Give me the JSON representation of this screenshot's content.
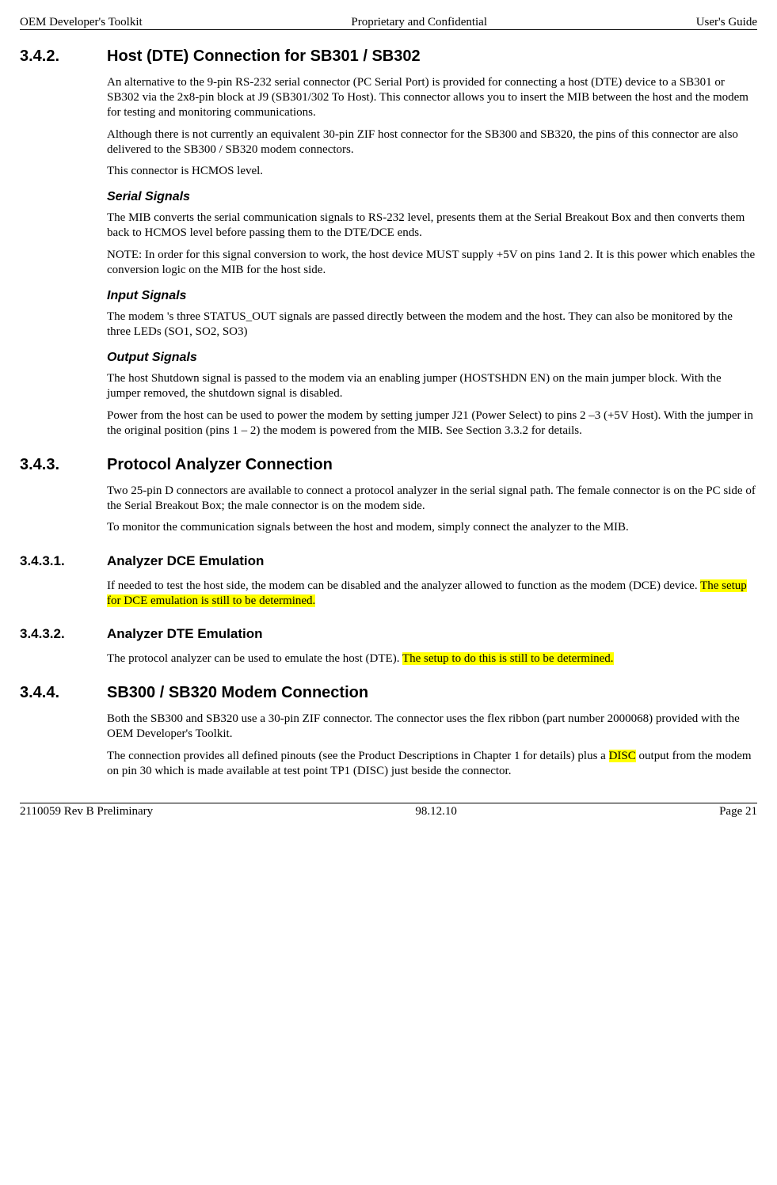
{
  "header": {
    "left": "OEM Developer's Toolkit",
    "center": "Proprietary and Confidential",
    "right": "User's Guide"
  },
  "footer": {
    "left": "2110059 Rev B Preliminary",
    "center": "98.12.10",
    "right": "Page 21"
  },
  "s342": {
    "num": "3.4.2.",
    "title": "Host (DTE) Connection for SB301 / SB302",
    "p1": "An alternative to the 9-pin RS-232 serial connector (PC Serial Port) is provided for connecting a host (DTE) device to a SB301 or SB302 via the 2x8-pin block at J9 (SB301/302 To Host).  This connector allows you to insert the MIB between the host and the modem for testing and monitoring communications.",
    "p2": "Although there is not currently an equivalent 30-pin ZIF host connector for the SB300 and SB320, the pins of this connector are also delivered to the SB300 / SB320 modem connectors.",
    "p3": "This connector is HCMOS level.",
    "serial_h": "Serial Signals",
    "serial_p1": "The MIB converts the serial communication signals to RS-232 level, presents them at the Serial Breakout Box and then converts them back to HCMOS level before passing them to the DTE/DCE ends.",
    "serial_p2": "NOTE: In order for this signal conversion to work, the host device MUST supply +5V on pins 1and 2.  It is this power which enables the conversion logic on the MIB for the host side.",
    "input_h": "Input Signals",
    "input_p1": "The modem 's three STATUS_OUT signals are passed directly between the modem and the host.  They can also be monitored by the three LEDs (SO1, SO2, SO3)",
    "output_h": "Output Signals",
    "output_p1": "The host Shutdown signal is passed to the modem via an enabling jumper (HOSTSHDN EN) on the main jumper block.  With the jumper removed, the shutdown signal is disabled.",
    "output_p2": "Power from the host can be used to power the modem by setting jumper J21 (Power Select) to pins 2 –3 (+5V Host).  With the jumper in the original position (pins 1 – 2) the modem is powered from the MIB.  See Section 3.3.2 for details."
  },
  "s343": {
    "num": "3.4.3.",
    "title": "Protocol Analyzer Connection",
    "p1": "Two 25-pin D connectors are available to connect a protocol analyzer in the serial signal path.  The female connector is on the PC side of the Serial Breakout Box; the male connector is on the modem side.",
    "p2": "To monitor the communication signals between the host and modem, simply connect the analyzer to the MIB."
  },
  "s3431": {
    "num": "3.4.3.1.",
    "title": "Analyzer DCE Emulation",
    "p1a": "If needed to test the host side, the modem can be disabled and the analyzer allowed to function as the modem (DCE) device.  ",
    "p1b_hl": "The setup for DCE emulation is still to be determined."
  },
  "s3432": {
    "num": "3.4.3.2.",
    "title": "Analyzer DTE Emulation",
    "p1a": "The protocol analyzer can be used to emulate the host (DTE).  ",
    "p1b_hl": "The setup to do this is still to be determined."
  },
  "s344": {
    "num": "3.4.4.",
    "title": "SB300 / SB320 Modem Connection",
    "p1": "Both the SB300 and SB320 use a 30-pin ZIF connector.  The connector uses the flex ribbon (part number 2000068) provided with the OEM Developer's Toolkit.",
    "p2a": "The connection provides all defined pinouts (see the Product Descriptions in Chapter 1 for details) plus a ",
    "p2b_hl": "DISC",
    "p2c": " output from the modem on pin 30 which is made available at test point TP1 (DISC) just beside the connector."
  }
}
